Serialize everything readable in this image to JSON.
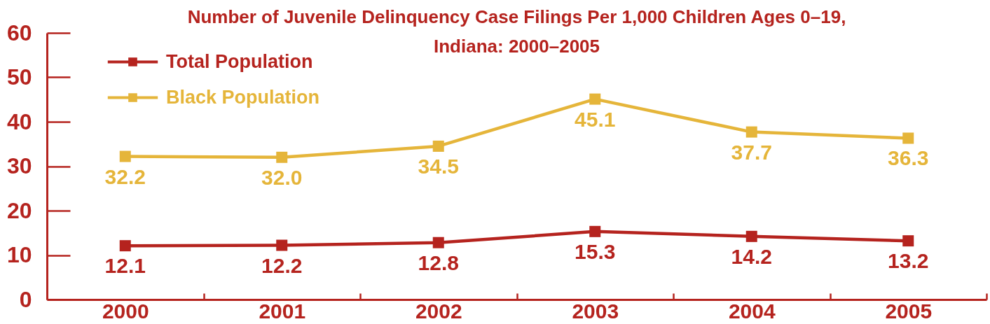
{
  "chart_data": {
    "type": "line",
    "title": "Number of Juvenile Delinquency Case Filings Per 1,000 Children Ages 0–19, Indiana: 2000–2005",
    "categories": [
      "2000",
      "2001",
      "2002",
      "2003",
      "2004",
      "2005"
    ],
    "series": [
      {
        "name": "Total Population",
        "color": "#b5231e",
        "values": [
          12.1,
          12.2,
          12.8,
          15.3,
          14.2,
          13.2
        ],
        "value_labels": [
          "12.1",
          "12.2",
          "12.8",
          "15.3",
          "14.2",
          "13.2"
        ]
      },
      {
        "name": "Black Population",
        "color": "#e5b53a",
        "values": [
          32.2,
          32.0,
          34.5,
          45.1,
          37.7,
          36.3
        ],
        "value_labels": [
          "32.2",
          "32.0",
          "34.5",
          "45.1",
          "37.7",
          "36.3"
        ]
      }
    ],
    "ylim": [
      0,
      60
    ],
    "yticks": [
      0,
      10,
      20,
      30,
      40,
      50,
      60
    ],
    "legend": "top left",
    "marker": "square",
    "line_style": "solid",
    "data_labels": true
  }
}
